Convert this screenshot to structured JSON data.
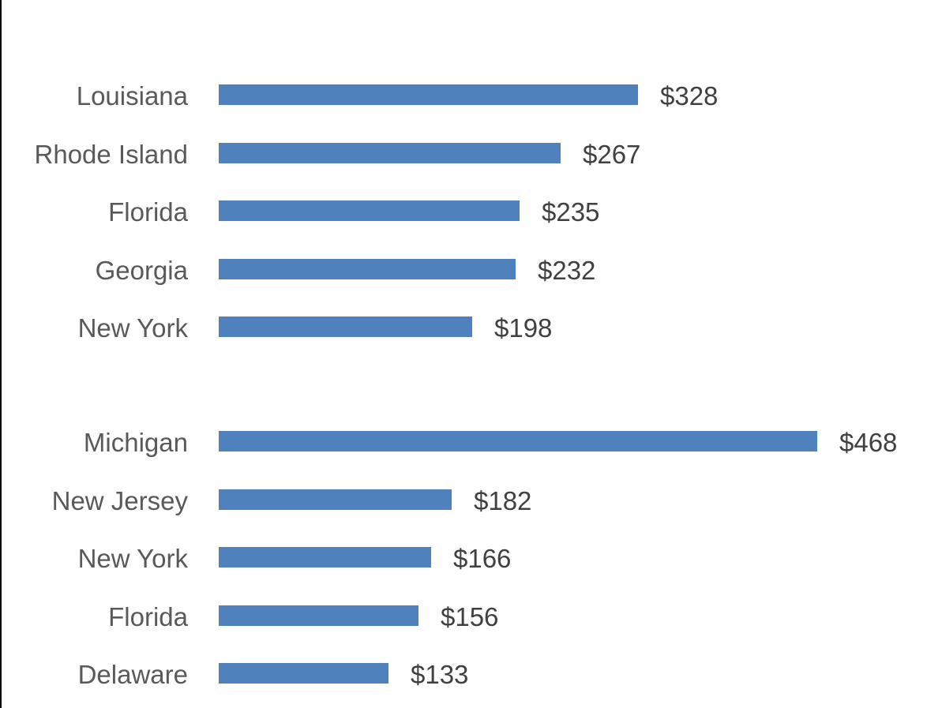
{
  "chart_data": {
    "type": "bar",
    "orientation": "horizontal",
    "title": "",
    "xlabel": "",
    "ylabel": "",
    "grid": false,
    "legend": null,
    "bar_color": "#4f81bd",
    "groups": [
      {
        "categories": [
          "Louisiana",
          "Rhode Island",
          "Florida",
          "Georgia",
          "New York"
        ],
        "values": [
          328,
          267,
          235,
          232,
          198
        ],
        "labels": [
          "$328",
          "$267",
          "$235",
          "$232",
          "$198"
        ]
      },
      {
        "categories": [
          "Michigan",
          "New Jersey",
          "New York",
          "Florida",
          "Delaware"
        ],
        "values": [
          468,
          182,
          166,
          156,
          133
        ],
        "labels": [
          "$468",
          "$182",
          "$166",
          "$156",
          "$133"
        ]
      }
    ]
  }
}
